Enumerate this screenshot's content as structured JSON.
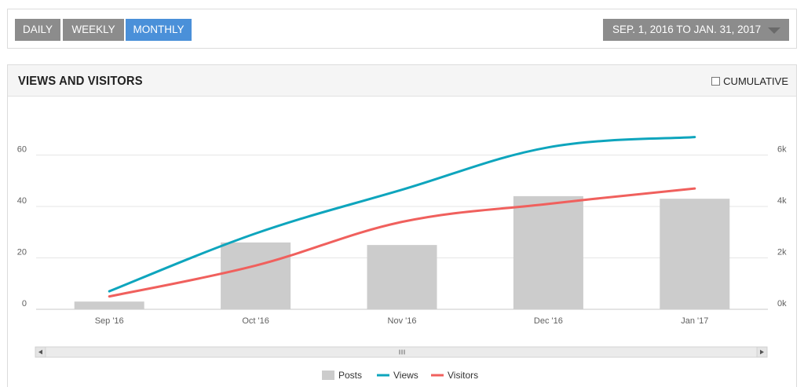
{
  "toolbar": {
    "periods": [
      "DAILY",
      "WEEKLY",
      "MONTHLY"
    ],
    "active_period": "MONTHLY",
    "date_range": "SEP. 1, 2016 TO JAN. 31, 2017"
  },
  "panel": {
    "title": "VIEWS AND VISITORS",
    "cumulative_label": "CUMULATIVE",
    "cumulative_checked": false
  },
  "colors": {
    "posts": "#cccccc",
    "views": "#0ea5bd",
    "visitors": "#f0605d",
    "active": "#4a90d9"
  },
  "chart_data": {
    "type": "bar",
    "categories": [
      "Sep '16",
      "Oct '16",
      "Nov '16",
      "Dec '16",
      "Jan '17"
    ],
    "series": [
      {
        "name": "Posts",
        "type": "bar",
        "axis": "left",
        "values": [
          3,
          26,
          25,
          44,
          43
        ]
      },
      {
        "name": "Views",
        "type": "line",
        "axis": "right",
        "values": [
          700,
          2950,
          4650,
          6300,
          6700
        ]
      },
      {
        "name": "Visitors",
        "type": "line",
        "axis": "right",
        "values": [
          500,
          1700,
          3400,
          4100,
          4700
        ]
      }
    ],
    "y_left": {
      "ticks": [
        "0",
        "20",
        "40",
        "60"
      ],
      "range": [
        0,
        80
      ]
    },
    "y_right": {
      "ticks": [
        "0k",
        "2k",
        "4k",
        "6k"
      ],
      "range": [
        0,
        8000
      ]
    },
    "grid": true,
    "legend_position": "bottom-center"
  }
}
